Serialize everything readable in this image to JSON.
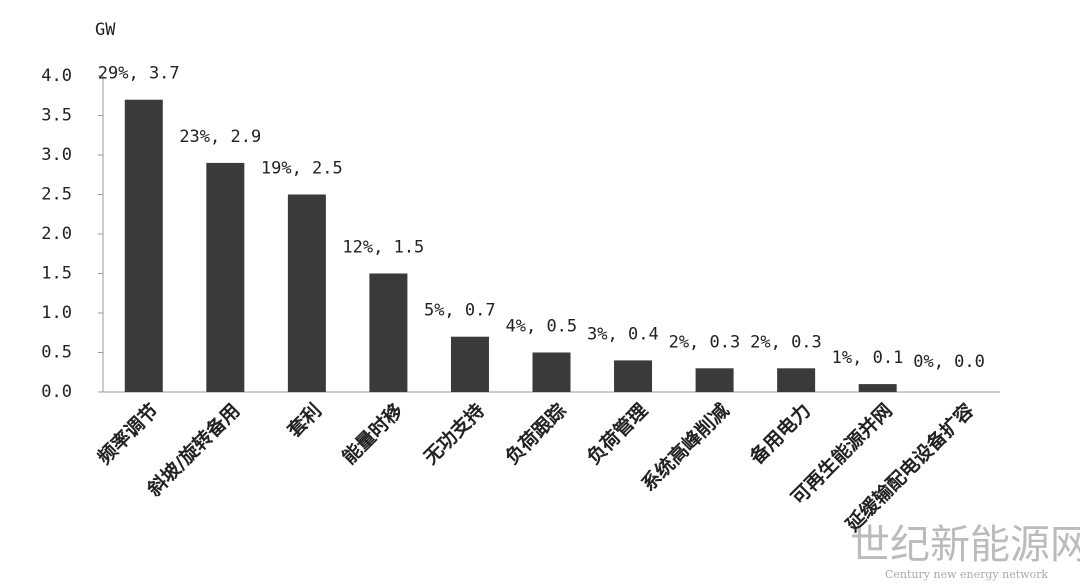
{
  "chart_data": {
    "type": "bar",
    "y_label": "GW",
    "categories": [
      "频率调节",
      "斜坡/旋转备用",
      "套利",
      "能量时移",
      "无功支持",
      "负荷跟踪",
      "负荷管理",
      "系统高峰削减",
      "备用电力",
      "可再生能源并网",
      "延缓输配电设备扩容"
    ],
    "values": [
      3.7,
      2.9,
      2.5,
      1.5,
      0.7,
      0.5,
      0.4,
      0.3,
      0.3,
      0.1,
      0.0
    ],
    "value_labels": [
      "29%, 3.7",
      "23%, 2.9",
      "19%, 2.5",
      "12%, 1.5",
      "5%, 0.7",
      "4%, 0.5",
      "3%, 0.4",
      "2%, 0.3",
      "2%, 0.3",
      "1%, 0.1",
      "0%, 0.0"
    ],
    "color": "#3a3a3a",
    "ylim": [
      0,
      4
    ],
    "yticks": [
      {
        "value": 0,
        "label": "0.0"
      },
      {
        "value": 0.5,
        "label": "0.5"
      },
      {
        "value": 1,
        "label": "1.0"
      },
      {
        "value": 1.5,
        "label": "1.5"
      },
      {
        "value": 2,
        "label": "2.0"
      },
      {
        "value": 2.5,
        "label": "2.5"
      },
      {
        "value": 3,
        "label": "3.0"
      },
      {
        "value": 3.5,
        "label": "3.5"
      },
      {
        "value": 4,
        "label": "4.0"
      }
    ],
    "grid": false
  },
  "watermark": {
    "title": "世纪新能源网",
    "subtitle": "Century new energy network"
  }
}
